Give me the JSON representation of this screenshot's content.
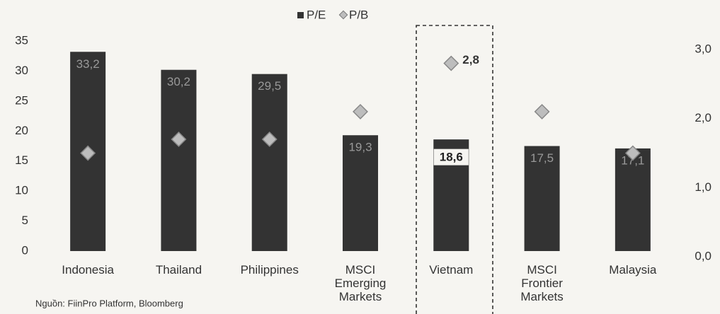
{
  "chart_data": {
    "type": "bar",
    "categories": [
      "Indonesia",
      "Thailand",
      "Philippines",
      "MSCI Emerging Markets",
      "Vietnam",
      "MSCI Frontier Markets",
      "Malaysia"
    ],
    "series": [
      {
        "name": "P/E",
        "color": "#333333",
        "values": [
          33.2,
          30.2,
          29.5,
          19.3,
          18.6,
          17.5,
          17.1
        ],
        "value_labels": [
          "33,2",
          "30,2",
          "29,5",
          "19,3",
          "18,6",
          "17,5",
          "17,1"
        ]
      },
      {
        "name": "P/B",
        "color": "#bdbdbd",
        "axis": "y2",
        "values": [
          1.5,
          1.7,
          1.7,
          2.1,
          2.8,
          2.1,
          1.5
        ],
        "value_labels": [
          null,
          null,
          null,
          null,
          "2,8",
          null,
          null
        ]
      }
    ],
    "ylim": [
      0,
      35
    ],
    "yticks": [
      0,
      5,
      10,
      15,
      20,
      25,
      30,
      35
    ],
    "y2lim": [
      0,
      3.0
    ],
    "y2ticks": [
      {
        "value": 0,
        "label": "0,0"
      },
      {
        "value": 1,
        "label": "1,0"
      },
      {
        "value": 2,
        "label": "2,0"
      },
      {
        "value": 3,
        "label": "3,0"
      }
    ],
    "legend": "top",
    "source": "Nguồn: FiinPro Platform, Bloomberg"
  }
}
